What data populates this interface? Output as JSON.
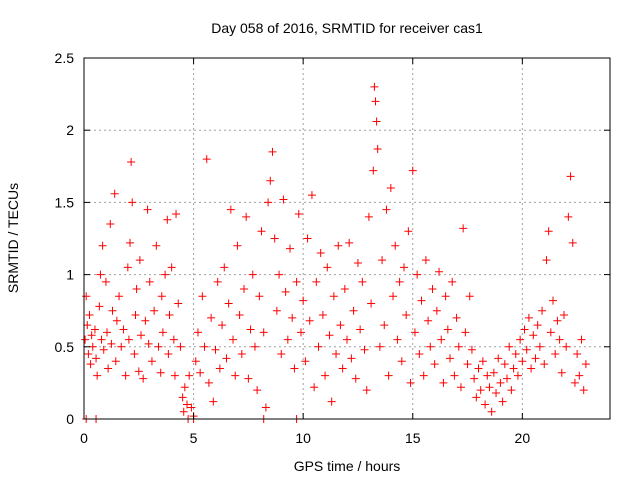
{
  "chart_data": {
    "type": "scatter",
    "title": "Day 058 of 2016, SRMTID for receiver cas1",
    "xlabel": "GPS time / hours",
    "ylabel": "SRMTID / TECUs",
    "xlim": [
      0,
      24
    ],
    "ylim": [
      0,
      2.5
    ],
    "x_ticks": [
      0,
      5,
      10,
      15,
      20
    ],
    "x_tick_labels": [
      "0",
      "5",
      "10",
      "15",
      "20"
    ],
    "y_ticks": [
      0,
      0.5,
      1,
      1.5,
      2,
      2.5
    ],
    "y_tick_labels": [
      "0",
      "0.5",
      "1",
      "1.5",
      "2",
      "2.5"
    ],
    "grid": true,
    "marker": "plus",
    "marker_color": "#ff0000",
    "series": [
      {
        "name": "SRMTID",
        "points": [
          [
            0.05,
            0.55
          ],
          [
            0.1,
            0.85
          ],
          [
            0.15,
            0.65
          ],
          [
            0.2,
            0.45
          ],
          [
            0.25,
            0.72
          ],
          [
            0.3,
            0.38
          ],
          [
            0.35,
            0.58
          ],
          [
            0.4,
            0.5
          ],
          [
            0.5,
            0.62
          ],
          [
            0.55,
            0.42
          ],
          [
            0.6,
            0.3
          ],
          [
            0.7,
            0.78
          ],
          [
            0.75,
            1.0
          ],
          [
            0.8,
            0.55
          ],
          [
            0.85,
            1.2
          ],
          [
            0.9,
            0.48
          ],
          [
            1.0,
            0.95
          ],
          [
            1.05,
            0.6
          ],
          [
            1.1,
            0.35
          ],
          [
            1.2,
            1.35
          ],
          [
            1.25,
            0.52
          ],
          [
            1.3,
            0.75
          ],
          [
            1.4,
            1.56
          ],
          [
            1.45,
            0.4
          ],
          [
            1.5,
            0.68
          ],
          [
            1.6,
            0.85
          ],
          [
            1.7,
            0.5
          ],
          [
            1.8,
            0.62
          ],
          [
            1.9,
            0.3
          ],
          [
            2.0,
            1.05
          ],
          [
            2.05,
            0.55
          ],
          [
            2.1,
            1.22
          ],
          [
            2.15,
            1.78
          ],
          [
            2.2,
            1.5
          ],
          [
            2.3,
            0.45
          ],
          [
            2.35,
            0.72
          ],
          [
            2.4,
            0.9
          ],
          [
            2.5,
            0.33
          ],
          [
            2.55,
            1.1
          ],
          [
            2.6,
            0.58
          ],
          [
            2.7,
            0.28
          ],
          [
            2.8,
            0.68
          ],
          [
            2.9,
            1.45
          ],
          [
            2.95,
            0.52
          ],
          [
            3.0,
            0.95
          ],
          [
            3.1,
            0.4
          ],
          [
            3.2,
            0.75
          ],
          [
            3.3,
            1.2
          ],
          [
            3.4,
            0.5
          ],
          [
            3.5,
            0.32
          ],
          [
            3.55,
            0.85
          ],
          [
            3.6,
            0.6
          ],
          [
            3.7,
            1.0
          ],
          [
            3.8,
            1.38
          ],
          [
            3.85,
            0.45
          ],
          [
            3.9,
            0.72
          ],
          [
            4.0,
            1.05
          ],
          [
            4.1,
            0.55
          ],
          [
            4.15,
            0.3
          ],
          [
            4.2,
            1.42
          ],
          [
            4.3,
            0.8
          ],
          [
            4.4,
            0.5
          ],
          [
            4.5,
            0.15
          ],
          [
            4.55,
            0.05
          ],
          [
            4.6,
            0.22
          ],
          [
            4.7,
            0.1
          ],
          [
            4.75,
            0.0
          ],
          [
            4.8,
            0.3
          ],
          [
            4.9,
            0.08
          ],
          [
            5.0,
            0.02
          ],
          [
            5.1,
            0.4
          ],
          [
            5.2,
            0.6
          ],
          [
            5.3,
            0.32
          ],
          [
            5.4,
            0.85
          ],
          [
            5.5,
            0.5
          ],
          [
            5.6,
            1.8
          ],
          [
            5.7,
            0.25
          ],
          [
            5.8,
            0.7
          ],
          [
            5.9,
            0.12
          ],
          [
            6.0,
            0.48
          ],
          [
            6.1,
            0.95
          ],
          [
            6.2,
            0.35
          ],
          [
            6.3,
            0.65
          ],
          [
            6.4,
            1.05
          ],
          [
            6.5,
            0.42
          ],
          [
            6.6,
            0.8
          ],
          [
            6.7,
            1.45
          ],
          [
            6.8,
            0.55
          ],
          [
            6.9,
            0.3
          ],
          [
            7.0,
            1.2
          ],
          [
            7.1,
            0.72
          ],
          [
            7.2,
            0.45
          ],
          [
            7.3,
            0.9
          ],
          [
            7.4,
            1.4
          ],
          [
            7.5,
            0.28
          ],
          [
            7.6,
            0.62
          ],
          [
            7.7,
            1.0
          ],
          [
            7.8,
            0.5
          ],
          [
            7.9,
            0.2
          ],
          [
            8.0,
            0.85
          ],
          [
            8.1,
            1.3
          ],
          [
            8.2,
            0.6
          ],
          [
            8.3,
            0.08
          ],
          [
            8.4,
            1.5
          ],
          [
            8.5,
            1.65
          ],
          [
            8.6,
            1.85
          ],
          [
            8.7,
            1.25
          ],
          [
            8.8,
            0.75
          ],
          [
            8.9,
            1.0
          ],
          [
            9.0,
            0.45
          ],
          [
            9.1,
            1.52
          ],
          [
            9.2,
            0.88
          ],
          [
            9.3,
            0.55
          ],
          [
            9.4,
            1.18
          ],
          [
            9.5,
            0.7
          ],
          [
            9.6,
            0.35
          ],
          [
            9.7,
            0.95
          ],
          [
            9.8,
            1.42
          ],
          [
            9.9,
            0.6
          ],
          [
            10.0,
            0.82
          ],
          [
            10.1,
            0.4
          ],
          [
            10.2,
            1.25
          ],
          [
            10.3,
            0.68
          ],
          [
            10.4,
            1.55
          ],
          [
            10.5,
            0.22
          ],
          [
            10.6,
            0.95
          ],
          [
            10.7,
            0.5
          ],
          [
            10.8,
            1.15
          ],
          [
            10.9,
            0.72
          ],
          [
            11.0,
            0.3
          ],
          [
            11.1,
            1.05
          ],
          [
            11.2,
            0.58
          ],
          [
            11.3,
            0.12
          ],
          [
            11.4,
            0.85
          ],
          [
            11.5,
            0.45
          ],
          [
            11.6,
            1.2
          ],
          [
            11.7,
            0.65
          ],
          [
            11.8,
            0.35
          ],
          [
            11.9,
            0.9
          ],
          [
            12.0,
            0.55
          ],
          [
            12.1,
            1.22
          ],
          [
            12.2,
            0.42
          ],
          [
            12.3,
            0.75
          ],
          [
            12.4,
            0.28
          ],
          [
            12.5,
            1.08
          ],
          [
            12.6,
            0.62
          ],
          [
            12.7,
            0.95
          ],
          [
            12.8,
            0.48
          ],
          [
            12.9,
            0.2
          ],
          [
            13.0,
            1.4
          ],
          [
            13.1,
            0.8
          ],
          [
            13.2,
            1.72
          ],
          [
            13.25,
            2.3
          ],
          [
            13.3,
            2.2
          ],
          [
            13.35,
            2.06
          ],
          [
            13.4,
            1.87
          ],
          [
            13.5,
            0.5
          ],
          [
            13.6,
            1.1
          ],
          [
            13.7,
            0.65
          ],
          [
            13.8,
            1.45
          ],
          [
            13.9,
            0.3
          ],
          [
            14.0,
            1.6
          ],
          [
            14.1,
            0.85
          ],
          [
            14.2,
            1.2
          ],
          [
            14.3,
            0.55
          ],
          [
            14.4,
            0.95
          ],
          [
            14.5,
            0.4
          ],
          [
            14.6,
            1.05
          ],
          [
            14.7,
            0.72
          ],
          [
            14.8,
            1.3
          ],
          [
            14.9,
            0.25
          ],
          [
            15.0,
            1.72
          ],
          [
            15.1,
            0.6
          ],
          [
            15.2,
            1.0
          ],
          [
            15.3,
            0.45
          ],
          [
            15.4,
            0.82
          ],
          [
            15.5,
            0.3
          ],
          [
            15.6,
            1.1
          ],
          [
            15.7,
            0.68
          ],
          [
            15.8,
            0.5
          ],
          [
            15.9,
            0.9
          ],
          [
            16.0,
            0.38
          ],
          [
            16.1,
            0.75
          ],
          [
            16.2,
            1.02
          ],
          [
            16.3,
            0.55
          ],
          [
            16.4,
            0.25
          ],
          [
            16.5,
            0.85
          ],
          [
            16.6,
            0.62
          ],
          [
            16.7,
            0.42
          ],
          [
            16.8,
            0.95
          ],
          [
            16.9,
            0.3
          ],
          [
            17.0,
            0.7
          ],
          [
            17.1,
            0.5
          ],
          [
            17.2,
            0.22
          ],
          [
            17.3,
            1.32
          ],
          [
            17.4,
            0.6
          ],
          [
            17.5,
            0.38
          ],
          [
            17.6,
            0.85
          ],
          [
            17.7,
            0.48
          ],
          [
            17.8,
            0.28
          ],
          [
            17.9,
            0.15
          ],
          [
            18.0,
            0.35
          ],
          [
            18.1,
            0.2
          ],
          [
            18.2,
            0.4
          ],
          [
            18.3,
            0.1
          ],
          [
            18.4,
            0.3
          ],
          [
            18.5,
            0.22
          ],
          [
            18.6,
            0.05
          ],
          [
            18.7,
            0.32
          ],
          [
            18.8,
            0.18
          ],
          [
            18.9,
            0.42
          ],
          [
            19.0,
            0.25
          ],
          [
            19.1,
            0.12
          ],
          [
            19.2,
            0.38
          ],
          [
            19.3,
            0.28
          ],
          [
            19.4,
            0.5
          ],
          [
            19.5,
            0.2
          ],
          [
            19.6,
            0.35
          ],
          [
            19.7,
            0.45
          ],
          [
            19.8,
            0.3
          ],
          [
            19.9,
            0.55
          ],
          [
            20.0,
            0.4
          ],
          [
            20.1,
            0.62
          ],
          [
            20.2,
            0.48
          ],
          [
            20.3,
            0.7
          ],
          [
            20.4,
            0.35
          ],
          [
            20.5,
            0.58
          ],
          [
            20.6,
            0.42
          ],
          [
            20.7,
            0.65
          ],
          [
            20.8,
            0.5
          ],
          [
            20.9,
            0.75
          ],
          [
            21.0,
            0.38
          ],
          [
            21.1,
            1.1
          ],
          [
            21.2,
            1.3
          ],
          [
            21.3,
            0.6
          ],
          [
            21.4,
            0.82
          ],
          [
            21.5,
            0.45
          ],
          [
            21.6,
            0.68
          ],
          [
            21.7,
            0.55
          ],
          [
            21.8,
            0.32
          ],
          [
            21.9,
            0.72
          ],
          [
            22.0,
            0.5
          ],
          [
            22.1,
            1.4
          ],
          [
            22.2,
            1.68
          ],
          [
            22.3,
            1.22
          ],
          [
            22.4,
            0.25
          ],
          [
            22.5,
            0.45
          ],
          [
            22.6,
            0.3
          ],
          [
            22.7,
            0.55
          ],
          [
            22.8,
            0.2
          ],
          [
            22.9,
            0.38
          ],
          [
            0.1,
            0.0
          ],
          [
            0.55,
            0.0
          ],
          [
            5.0,
            0.0
          ],
          [
            8.2,
            0.0
          ],
          [
            9.7,
            0.0
          ]
        ]
      }
    ]
  }
}
